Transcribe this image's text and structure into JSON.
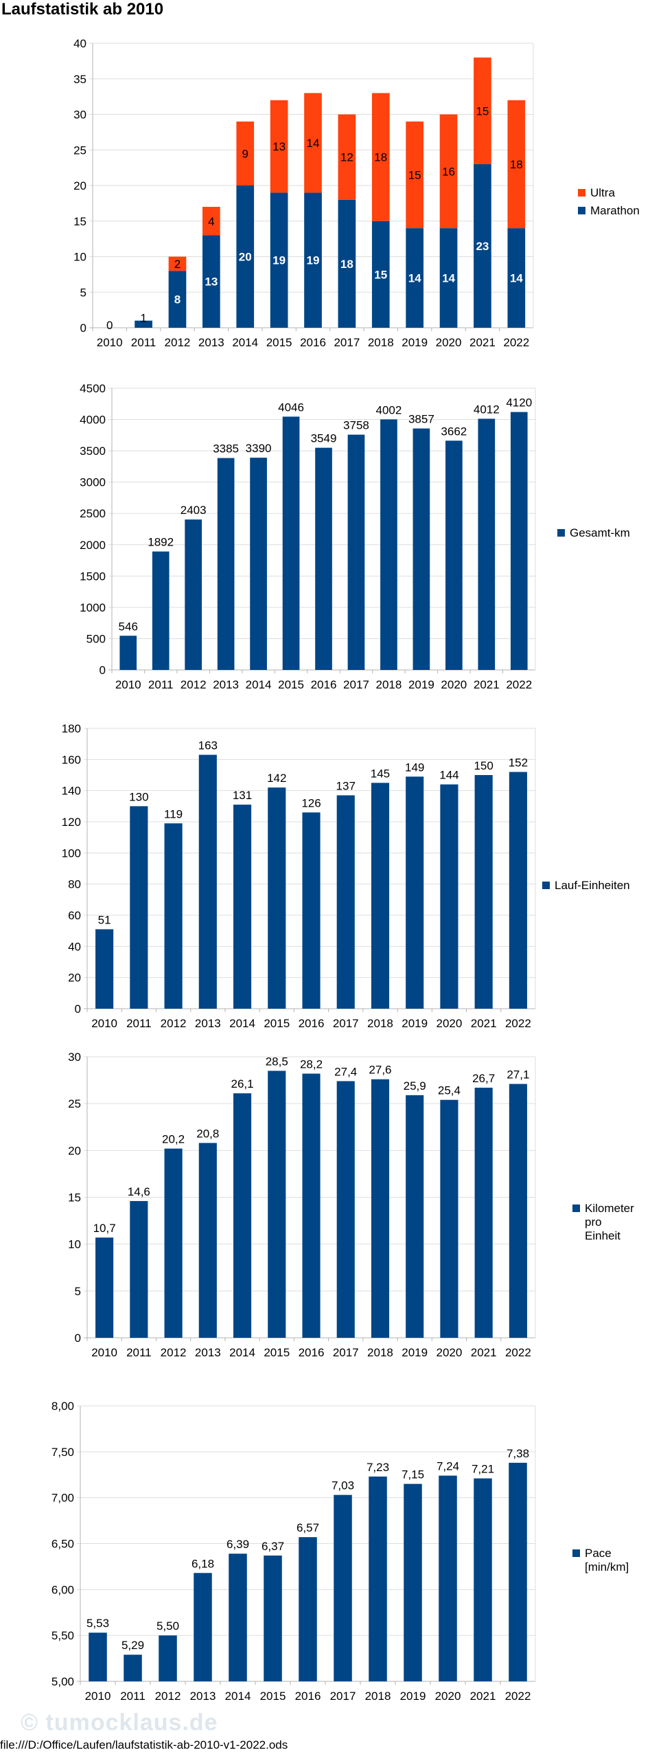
{
  "page": {
    "title": "Laufstatistik ab 2010",
    "footer": "file:///D:/Office/Laufen/laufstatistik-ab-2010-v1-2022.ods",
    "watermark": "© tumocklaus.de"
  },
  "colors": {
    "marathon": "#004586",
    "ultra": "#ff420e",
    "bar": "#004586",
    "grid": "#dddddd",
    "axis": "#b3b3b3"
  },
  "chart_data": [
    {
      "id": "chart1",
      "type": "bar",
      "stacked": true,
      "categories": [
        "2010",
        "2011",
        "2012",
        "2013",
        "2014",
        "2015",
        "2016",
        "2017",
        "2018",
        "2019",
        "2020",
        "2021",
        "2022"
      ],
      "series": [
        {
          "name": "Marathon",
          "color": "#004586",
          "values": [
            0,
            1,
            8,
            13,
            20,
            19,
            19,
            18,
            15,
            14,
            14,
            23,
            14
          ]
        },
        {
          "name": "Ultra",
          "color": "#ff420e",
          "values": [
            0,
            0,
            2,
            4,
            9,
            13,
            14,
            12,
            18,
            15,
            16,
            15,
            18
          ]
        }
      ],
      "ylim": [
        0,
        40
      ],
      "yticks": [
        0,
        5,
        10,
        15,
        20,
        25,
        30,
        35,
        40
      ],
      "legend_position": "right",
      "legend_order": [
        "Ultra",
        "Marathon"
      ]
    },
    {
      "id": "chart2",
      "type": "bar",
      "categories": [
        "2010",
        "2011",
        "2012",
        "2013",
        "2014",
        "2015",
        "2016",
        "2017",
        "2018",
        "2019",
        "2020",
        "2021",
        "2022"
      ],
      "series": [
        {
          "name": "Gesamt-km",
          "color": "#004586",
          "values": [
            546,
            1892,
            2403,
            3385,
            3390,
            4046,
            3549,
            3758,
            4002,
            3857,
            3662,
            4012,
            4120
          ],
          "labels": [
            "546",
            "1892",
            "2403",
            "3385",
            "3390",
            "4046",
            "3549",
            "3758",
            "4002",
            "3857",
            "3662",
            "4012",
            "4120"
          ]
        }
      ],
      "ylim": [
        0,
        4500
      ],
      "yticks": [
        0,
        500,
        1000,
        1500,
        2000,
        2500,
        3000,
        3500,
        4000,
        4500
      ],
      "legend_position": "right"
    },
    {
      "id": "chart3",
      "type": "bar",
      "categories": [
        "2010",
        "2011",
        "2012",
        "2013",
        "2014",
        "2015",
        "2016",
        "2017",
        "2018",
        "2019",
        "2020",
        "2021",
        "2022"
      ],
      "series": [
        {
          "name": "Lauf-Einheiten",
          "color": "#004586",
          "values": [
            51,
            130,
            119,
            163,
            131,
            142,
            126,
            137,
            145,
            149,
            144,
            150,
            152
          ],
          "labels": [
            "51",
            "130",
            "119",
            "163",
            "131",
            "142",
            "126",
            "137",
            "145",
            "149",
            "144",
            "150",
            "152"
          ]
        }
      ],
      "ylim": [
        0,
        180
      ],
      "yticks": [
        0,
        20,
        40,
        60,
        80,
        100,
        120,
        140,
        160,
        180
      ],
      "legend_position": "right"
    },
    {
      "id": "chart4",
      "type": "bar",
      "categories": [
        "2010",
        "2011",
        "2012",
        "2013",
        "2014",
        "2015",
        "2016",
        "2017",
        "2018",
        "2019",
        "2020",
        "2021",
        "2022"
      ],
      "series": [
        {
          "name": "Kilometer pro Einheit",
          "name_lines": [
            "Kilometer",
            "pro",
            "Einheit"
          ],
          "color": "#004586",
          "values": [
            10.7,
            14.6,
            20.2,
            20.8,
            26.1,
            28.5,
            28.2,
            27.4,
            27.6,
            25.9,
            25.4,
            26.7,
            27.1
          ],
          "labels": [
            "10,7",
            "14,6",
            "20,2",
            "20,8",
            "26,1",
            "28,5",
            "28,2",
            "27,4",
            "27,6",
            "25,9",
            "25,4",
            "26,7",
            "27,1"
          ]
        }
      ],
      "ylim": [
        0,
        30
      ],
      "yticks": [
        0,
        5,
        10,
        15,
        20,
        25,
        30
      ],
      "legend_position": "right"
    },
    {
      "id": "chart5",
      "type": "bar",
      "categories": [
        "2010",
        "2011",
        "2012",
        "2013",
        "2014",
        "2015",
        "2016",
        "2017",
        "2018",
        "2019",
        "2020",
        "2021",
        "2022"
      ],
      "series": [
        {
          "name": "Pace [min/km]",
          "name_lines": [
            "Pace",
            "[min/km]"
          ],
          "color": "#004586",
          "values": [
            5.53,
            5.29,
            5.5,
            6.18,
            6.39,
            6.37,
            6.57,
            7.03,
            7.23,
            7.15,
            7.24,
            7.21,
            7.38
          ],
          "labels": [
            "5,53",
            "5,29",
            "5,50",
            "6,18",
            "6,39",
            "6,37",
            "6,57",
            "7,03",
            "7,23",
            "7,15",
            "7,24",
            "7,21",
            "7,38"
          ]
        }
      ],
      "ylim": [
        5.0,
        8.0
      ],
      "yticks": [
        5.0,
        5.5,
        6.0,
        6.5,
        7.0,
        7.5,
        8.0
      ],
      "ytick_labels": [
        "5,00",
        "5,50",
        "6,00",
        "6,50",
        "7,00",
        "7,50",
        "8,00"
      ],
      "legend_position": "right"
    }
  ]
}
